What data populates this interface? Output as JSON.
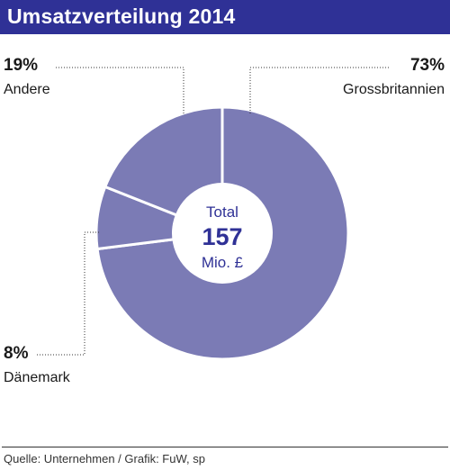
{
  "header": {
    "title": "Umsatzverteilung 2014"
  },
  "chart_data": {
    "type": "pie",
    "title": "Umsatzverteilung 2014",
    "center": {
      "top": "Total",
      "value": "157",
      "unit": "Mio. £"
    },
    "slices": [
      {
        "name": "Grossbritannien",
        "label": "73%",
        "value": 73
      },
      {
        "name": "Dänemark",
        "label": "8%",
        "value": 8
      },
      {
        "name": "Andere",
        "label": "19%",
        "value": 19
      }
    ],
    "colors": {
      "slice": "#7b7bb5",
      "separator": "#ffffff",
      "accent": "#2f3196"
    }
  },
  "footer": {
    "source": "Quelle: Unternehmen / Grafik: FuW, sp"
  }
}
